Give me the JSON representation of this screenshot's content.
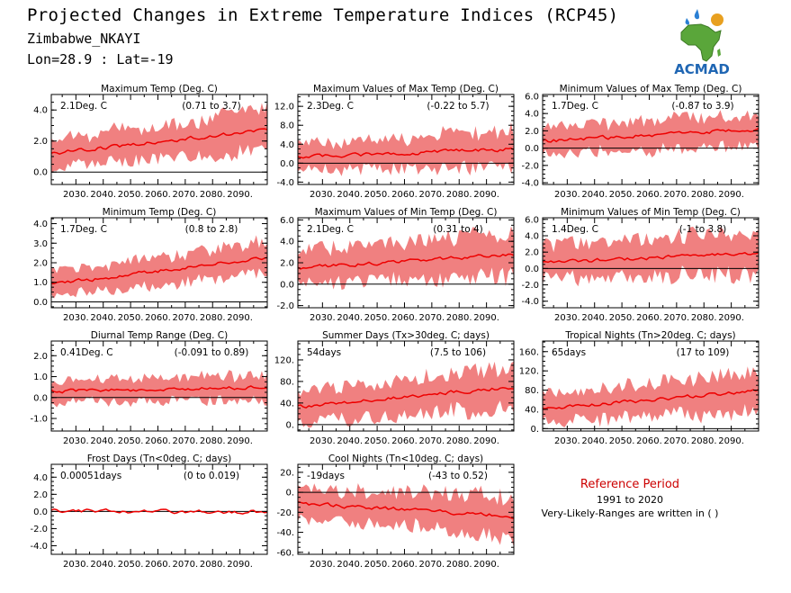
{
  "header": {
    "title": "Projected Changes in Extreme Temperature Indices (RCP45)",
    "region": "Zimbabwe_NKAYI",
    "coords": "Lon=28.9 : Lat=-19"
  },
  "logo": {
    "text": "ACMAD",
    "icon": "africa-map-logo-icon",
    "colors": {
      "map": "#5aa63a",
      "text": "#1f66b3",
      "drops": "#2a7fd4",
      "sun": "#e8a020"
    }
  },
  "reference": {
    "title": "Reference Period",
    "years": "1991 to 2020",
    "note": "Very-Likely-Ranges are written in ( )"
  },
  "colors": {
    "band": "#f08080",
    "line": "#ee0000",
    "zero": "#000000"
  },
  "chart_data": [
    {
      "type": "line",
      "title": "Maximum Temp (Deg. C)",
      "value_text": "2.1Deg. C",
      "range_text": "(0.71 to 3.7)",
      "ylim": [
        -0.8,
        5.0
      ],
      "yticks": [
        0.0,
        2.0,
        4.0
      ],
      "ytick_labels": [
        "0.0",
        "2.0",
        "4.0"
      ],
      "start": 1.2,
      "end": 2.7,
      "band_lo": 0.9,
      "band_hi": 1.3
    },
    {
      "type": "line",
      "title": "Maximum Values of Max Temp (Deg. C)",
      "value_text": "2.3Deg. C",
      "range_text": "(-0.22 to 5.7)",
      "ylim": [
        -4.5,
        14.5
      ],
      "yticks": [
        -4.0,
        0.0,
        4.0,
        8.0,
        12.0
      ],
      "ytick_labels": [
        "-4.0",
        "0.0",
        "4.0",
        "8.0",
        "12.0"
      ],
      "start": 1.3,
      "end": 3.0,
      "band_lo": 2.5,
      "band_hi": 4.0
    },
    {
      "type": "line",
      "title": "Minimum Values of Max Temp (Deg. C)",
      "value_text": "1.7Deg. C",
      "range_text": "(-0.87 to 3.9)",
      "ylim": [
        -4.2,
        6.2
      ],
      "yticks": [
        -4.0,
        -2.0,
        0.0,
        2.0,
        4.0,
        6.0
      ],
      "ytick_labels": [
        "-4.0",
        "-2.0",
        "0.0",
        "2.0",
        "4.0",
        "6.0"
      ],
      "start": 0.8,
      "end": 2.2,
      "band_lo": 1.6,
      "band_hi": 1.8
    },
    {
      "type": "line",
      "title": "Minimum Temp (Deg. C)",
      "value_text": "1.7Deg. C",
      "range_text": "(0.8 to 2.8)",
      "ylim": [
        -0.3,
        4.3
      ],
      "yticks": [
        0.0,
        1.0,
        2.0,
        3.0,
        4.0
      ],
      "ytick_labels": [
        "0.0",
        "1.0",
        "2.0",
        "3.0",
        "4.0"
      ],
      "start": 0.9,
      "end": 2.3,
      "band_lo": 0.6,
      "band_hi": 0.8
    },
    {
      "type": "line",
      "title": "Maximum Values of Min Temp (Deg. C)",
      "value_text": "2.1Deg. C",
      "range_text": "(0.31 to 4)",
      "ylim": [
        -2.2,
        6.2
      ],
      "yticks": [
        -2.0,
        0.0,
        2.0,
        4.0,
        6.0
      ],
      "ytick_labels": [
        "-2.0",
        "0.0",
        "2.0",
        "4.0",
        "6.0"
      ],
      "start": 1.5,
      "end": 2.8,
      "band_lo": 1.6,
      "band_hi": 2.0
    },
    {
      "type": "line",
      "title": "Minimum Values of Min Temp (Deg. C)",
      "value_text": "1.4Deg. C",
      "range_text": "(-1 to 3.8)",
      "ylim": [
        -4.8,
        6.2
      ],
      "yticks": [
        -4.0,
        -2.0,
        0.0,
        2.0,
        4.0,
        6.0
      ],
      "ytick_labels": [
        "-4.0",
        "-2.0",
        "0.0",
        "2.0",
        "4.0",
        "6.0"
      ],
      "start": 0.7,
      "end": 1.9,
      "band_lo": 2.0,
      "band_hi": 2.6
    },
    {
      "type": "line",
      "title": "Diurnal Temp Range (Deg. C)",
      "value_text": "0.41Deg. C",
      "range_text": "(-0.091 to 0.89)",
      "ylim": [
        -1.6,
        2.7
      ],
      "yticks": [
        -1.0,
        0.0,
        1.0,
        2.0
      ],
      "ytick_labels": [
        "-1.0",
        "0.0",
        "1.0",
        "2.0"
      ],
      "start": 0.3,
      "end": 0.5,
      "band_lo": 0.5,
      "band_hi": 0.6
    },
    {
      "type": "line",
      "title": "Summer Days (Tx>30deg. C; days)",
      "value_text": "54days",
      "range_text": "(7.5 to 106)",
      "ylim": [
        -12,
        155
      ],
      "yticks": [
        0,
        40,
        80,
        120
      ],
      "ytick_labels": [
        "0.",
        "40.",
        "80.",
        "120."
      ],
      "start": 33,
      "end": 70,
      "band_lo": 28,
      "band_hi": 38
    },
    {
      "type": "line",
      "title": "Tropical Nights (Tn>20deg. C; days)",
      "value_text": "65days",
      "range_text": "(17 to 109)",
      "ylim": [
        -5,
        182
      ],
      "yticks": [
        0,
        40,
        80,
        120,
        160
      ],
      "ytick_labels": [
        "0.",
        "40.",
        "80.",
        "120.",
        "160."
      ],
      "start": 40,
      "end": 80,
      "band_lo": 28,
      "band_hi": 42
    },
    {
      "type": "line",
      "title": "Frost Days (Tn<0deg. C; days)",
      "value_text": "0.00051days",
      "range_text": "(0 to 0.019)",
      "ylim": [
        -5.0,
        5.5
      ],
      "yticks": [
        -4.0,
        -2.0,
        0.0,
        2.0,
        4.0
      ],
      "ytick_labels": [
        "-4.0",
        "-2.0",
        "0.0",
        "2.0",
        "4.0"
      ],
      "start": 0.0,
      "end": 0.0,
      "band_lo": 0.0,
      "band_hi": 0.0
    },
    {
      "type": "line",
      "title": "Cool Nights (Tn<10deg. C; days)",
      "value_text": "-19days",
      "range_text": "(-43 to 0.52)",
      "ylim": [
        -62,
        28
      ],
      "yticks": [
        -60,
        -40,
        -20,
        0,
        20
      ],
      "ytick_labels": [
        "-60.",
        "-40.",
        "-20.",
        "0.",
        "20."
      ],
      "start": -11,
      "end": -24,
      "band_lo": 14,
      "band_hi": 20
    }
  ],
  "xaxis": {
    "range": [
      2021,
      2100
    ],
    "ticks": [
      2030,
      2040,
      2050,
      2060,
      2070,
      2080,
      2090
    ],
    "tick_labels": [
      "2030.",
      "2040.",
      "2050.",
      "2060.",
      "2070.",
      "2080.",
      "2090."
    ]
  }
}
